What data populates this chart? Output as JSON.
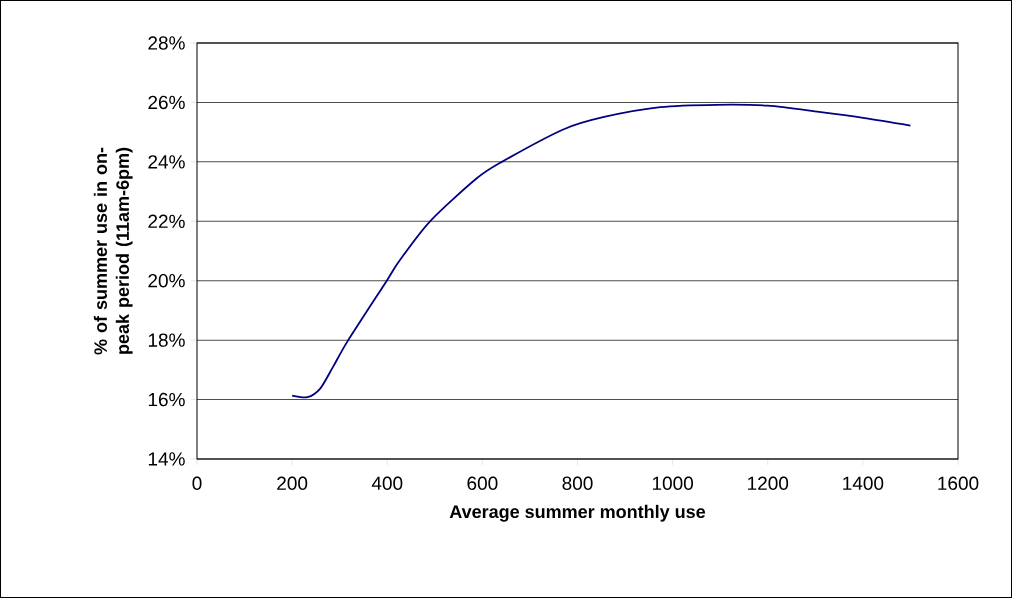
{
  "chart_data": {
    "type": "line",
    "xlabel": "Average summer monthly use",
    "ylabel": "% of summer use in on-peak period (11am-6pm)",
    "x": [
      200,
      232,
      259,
      286,
      318,
      399,
      426,
      490,
      587,
      641,
      770,
      856,
      974,
      1092,
      1200,
      1308,
      1404,
      1500
    ],
    "series": [
      {
        "color": "#000080",
        "values": [
          16.13,
          16.08,
          16.37,
          17.1,
          18.0,
          20.0,
          20.68,
          22.0,
          23.43,
          24.0,
          25.09,
          25.51,
          25.84,
          25.92,
          25.89,
          25.68,
          25.47,
          25.22
        ]
      }
    ],
    "xlim": [
      0,
      1600
    ],
    "xticks": [
      0,
      200,
      400,
      600,
      800,
      1000,
      1200,
      1400,
      1600
    ],
    "ylim": [
      14,
      28
    ],
    "yticks": [
      {
        "value": 14,
        "label": "14%"
      },
      {
        "value": 16,
        "label": "16%"
      },
      {
        "value": 18,
        "label": "18%"
      },
      {
        "value": 20,
        "label": "20%"
      },
      {
        "value": 22,
        "label": "22%"
      },
      {
        "value": 24,
        "label": "24%"
      },
      {
        "value": 26,
        "label": "26%"
      },
      {
        "value": 28,
        "label": "28%"
      }
    ],
    "grid": "y",
    "marker": "none",
    "line_style": "solid"
  }
}
